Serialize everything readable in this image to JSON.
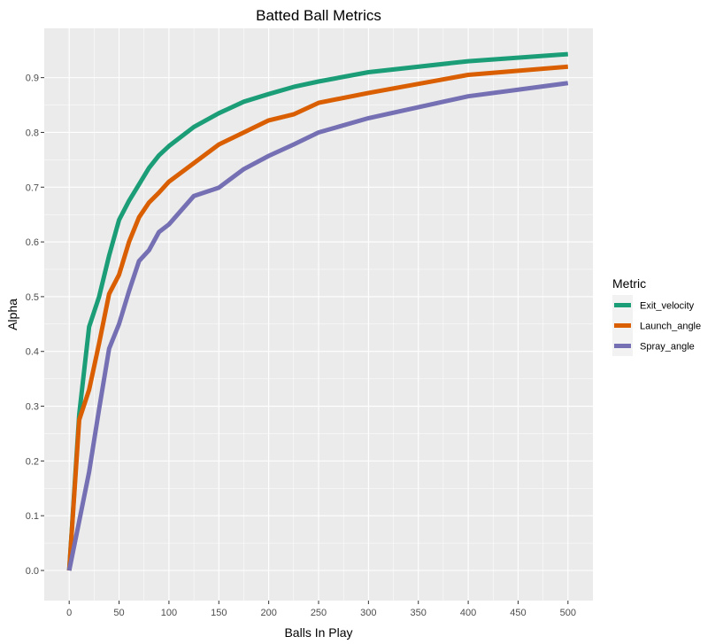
{
  "chart_data": {
    "type": "line",
    "title": "Batted Ball Metrics",
    "xlabel": "Balls In Play",
    "ylabel": "Alpha",
    "xlim": [
      -25,
      525
    ],
    "ylim": [
      -0.055,
      0.99
    ],
    "xticks": [
      0,
      50,
      100,
      150,
      200,
      250,
      300,
      350,
      400,
      450,
      500
    ],
    "yticks": [
      0.0,
      0.1,
      0.2,
      0.3,
      0.4,
      0.5,
      0.6,
      0.7,
      0.8,
      0.9
    ],
    "xtick_labels": [
      "0",
      "50",
      "100",
      "150",
      "200",
      "250",
      "300",
      "350",
      "400",
      "450",
      "500"
    ],
    "ytick_labels": [
      "0.0",
      "0.1",
      "0.2",
      "0.3",
      "0.4",
      "0.5",
      "0.6",
      "0.7",
      "0.8",
      "0.9"
    ],
    "grid": true,
    "background": "#ebebeb",
    "legend_title": "Metric",
    "legend_position": "right",
    "x": [
      0,
      10,
      20,
      30,
      40,
      50,
      60,
      70,
      80,
      90,
      100,
      125,
      150,
      175,
      200,
      225,
      250,
      300,
      400,
      500
    ],
    "series": [
      {
        "name": "Exit_velocity",
        "color": "#1b9e77",
        "values": [
          0.0,
          0.285,
          0.445,
          0.5,
          0.575,
          0.64,
          0.675,
          0.705,
          0.735,
          0.758,
          0.775,
          0.81,
          0.835,
          0.856,
          0.87,
          0.883,
          0.893,
          0.91,
          0.93,
          0.943
        ]
      },
      {
        "name": "Launch_angle",
        "color": "#d95f02",
        "values": [
          0.0,
          0.275,
          0.33,
          0.415,
          0.505,
          0.54,
          0.6,
          0.645,
          0.672,
          0.69,
          0.71,
          0.744,
          0.778,
          0.8,
          0.822,
          0.833,
          0.854,
          0.872,
          0.905,
          0.92
        ]
      },
      {
        "name": "Spray_angle",
        "color": "#7570b3",
        "values": [
          0.0,
          0.09,
          0.18,
          0.295,
          0.405,
          0.45,
          0.51,
          0.565,
          0.585,
          0.618,
          0.632,
          0.684,
          0.699,
          0.733,
          0.757,
          0.778,
          0.8,
          0.826,
          0.866,
          0.89
        ]
      }
    ]
  }
}
